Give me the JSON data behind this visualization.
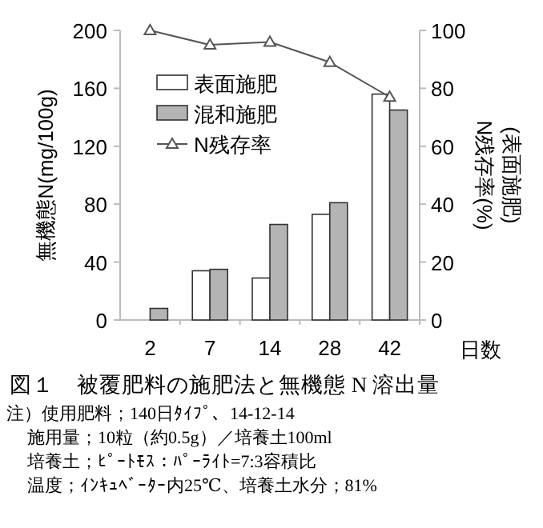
{
  "chart_data": {
    "type": "bar",
    "title": "図１　被覆肥料の施肥法と無機態 N 溶出量",
    "annotations": [
      "注）使用肥料；140日ﾀｲﾌﾟ、14-12-14",
      "施用量；10粒（約0.5g）／培養土100ml",
      "培養土；ﾋﾟｰﾄﾓｽ：ﾊﾟｰﾗｲﾄ=7:3容積比",
      "温度；ｲﾝｷｭﾍﾞｰﾀｰ内25℃、培養土水分；81%"
    ],
    "xlabel": "日数",
    "ylabel": "無機態N(mg/100g)",
    "y2label": "N残存率(%)\n(表面施肥)",
    "categories": [
      "2",
      "7",
      "14",
      "28",
      "42"
    ],
    "ylim": [
      0,
      200
    ],
    "yticks": [
      0,
      40,
      80,
      120,
      160,
      200
    ],
    "y2lim": [
      0,
      100
    ],
    "y2ticks": [
      0,
      20,
      40,
      60,
      80,
      100
    ],
    "legend": "top left",
    "series": [
      {
        "name": "表面施肥",
        "color": "#ffffff",
        "values": [
          null,
          34,
          29,
          73,
          156
        ]
      },
      {
        "name": "混和施肥",
        "color": "#b4b4b4",
        "values": [
          8,
          35,
          66,
          81,
          145
        ]
      },
      {
        "name": "N残存率",
        "type": "line",
        "axis": "y2",
        "marker": "triangle",
        "color": "#555555",
        "values": [
          100,
          95,
          96,
          89,
          77
        ]
      }
    ]
  }
}
